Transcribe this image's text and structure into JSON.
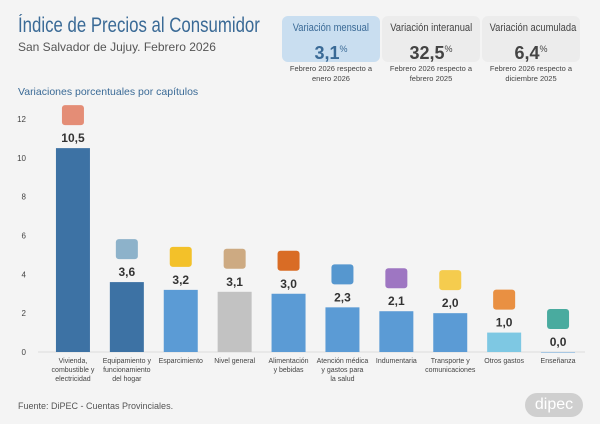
{
  "header": {
    "title": "Índice de Precios al Consumidor",
    "subtitle": "San Salvador de Jujuy. Febrero 2026"
  },
  "cards": [
    {
      "label": "Variación mensual",
      "value": "3,1",
      "unit": "%",
      "note": "Febrero 2026 respecto a enero 2026",
      "active": true
    },
    {
      "label": "Variación interanual",
      "value": "32,5",
      "unit": "%",
      "note": "Febrero 2026 respecto a febrero 2025",
      "active": false
    },
    {
      "label": "Variación acumulada",
      "value": "6,4",
      "unit": "%",
      "note": "Febrero 2026 respecto a diciembre 2025",
      "active": false
    }
  ],
  "section_title": "Variaciones porcentuales por capítulos",
  "chart_data": {
    "type": "bar",
    "categories": [
      [
        "Vivienda,",
        "combustible y",
        "electricidad"
      ],
      [
        "Equipamiento y",
        "funcionamiento",
        "del hogar"
      ],
      [
        "Esparcimiento"
      ],
      [
        "Nivel general"
      ],
      [
        "Alimentación",
        "y bebidas"
      ],
      [
        "Atención médica",
        "y gastos para",
        "la salud"
      ],
      [
        "Indumentaria"
      ],
      [
        "Transporte y",
        "comunicaciones"
      ],
      [
        "Otros gastos"
      ],
      [
        "Enseñanza"
      ]
    ],
    "values": [
      10.5,
      3.6,
      3.2,
      3.1,
      3.0,
      2.3,
      2.1,
      2.0,
      1.0,
      0.0
    ],
    "data_labels": [
      "10,5",
      "3,6",
      "3,2",
      "3,1",
      "3,0",
      "2,3",
      "2,1",
      "2,0",
      "1,0",
      "0,0"
    ],
    "colors": [
      "#3d72a4",
      "#3d72a4",
      "#5b9bd5",
      "#c2c2c2",
      "#5b9bd5",
      "#5b9bd5",
      "#5b9bd5",
      "#5b9bd5",
      "#7ec8e3",
      "#5b9bd5"
    ],
    "icons": [
      "house-icon",
      "washing-machine-icon",
      "music-ticket-icon",
      "box-icon",
      "food-icon",
      "medical-kit-icon",
      "clothes-icon",
      "bus-phone-icon",
      "puzzle-icon",
      "book-icon"
    ],
    "ylim": [
      0,
      12
    ],
    "yticks": [
      0,
      2,
      4,
      6,
      8,
      10,
      12
    ],
    "grid": false
  },
  "footer": {
    "source": "Fuente: DiPEC - Cuentas Provinciales.",
    "logo": "dipec"
  }
}
